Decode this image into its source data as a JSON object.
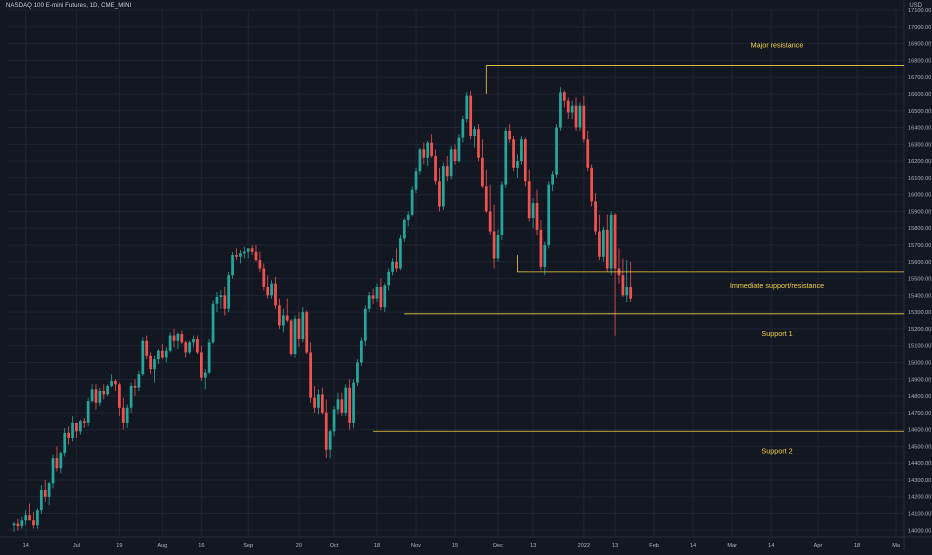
{
  "chart_data": {
    "type": "candlestick",
    "title": "NASDAQ 100 E-mini Futures, 1D, CME_MINI",
    "unit": "USD",
    "y_ticks": [
      14000,
      14100,
      14200,
      14300,
      14400,
      14500,
      14600,
      14700,
      14800,
      14900,
      15000,
      15100,
      15200,
      15300,
      15400,
      15500,
      15600,
      15700,
      15800,
      15900,
      16000,
      16100,
      16200,
      16300,
      16400,
      16500,
      16600,
      16700,
      16800,
      16900,
      17000,
      17100
    ],
    "y_tick_labels": [
      "14000.00",
      "14100.00",
      "14200.00",
      "14300.00",
      "14400.00",
      "14500.00",
      "14600.00",
      "14700.00",
      "14800.00",
      "14900.00",
      "15000.00",
      "15100.00",
      "15200.00",
      "15300.00",
      "15400.00",
      "15500.00",
      "15600.00",
      "15700.00",
      "15800.00",
      "15900.00",
      "16000.00",
      "16100.00",
      "16200.00",
      "16300.00",
      "16400.00",
      "16500.00",
      "16600.00",
      "16700.00",
      "16800.00",
      "16900.00",
      "17000.00",
      "17100.00"
    ],
    "ylim": [
      13960,
      17160
    ],
    "x_ticks": [
      {
        "label": "14",
        "index": 3
      },
      {
        "label": "Jul",
        "index": 16
      },
      {
        "label": "19",
        "index": 27
      },
      {
        "label": "Aug",
        "index": 38
      },
      {
        "label": "16",
        "index": 48
      },
      {
        "label": "Sep",
        "index": 60
      },
      {
        "label": "20",
        "index": 73
      },
      {
        "label": "Oct",
        "index": 82
      },
      {
        "label": "18",
        "index": 93
      },
      {
        "label": "Nov",
        "index": 103
      },
      {
        "label": "15",
        "index": 113
      },
      {
        "label": "Dec",
        "index": 124
      },
      {
        "label": "13",
        "index": 133
      },
      {
        "label": "2022",
        "index": 146
      },
      {
        "label": "13",
        "index": 154
      },
      {
        "label": "Feb",
        "index": 164
      },
      {
        "label": "14",
        "index": 174
      },
      {
        "label": "Mar",
        "index": 184
      },
      {
        "label": "14",
        "index": 194
      },
      {
        "label": "Apr",
        "index": 206
      },
      {
        "label": "18",
        "index": 216
      },
      {
        "label": "Ma",
        "index": 226
      }
    ],
    "index_range": [
      0,
      227
    ],
    "colors": {
      "up": "#26a69a",
      "down": "#ef5350",
      "level": "#f0d243",
      "grid": "#1f2433",
      "text": "#b2b5be"
    },
    "candles": [
      [
        14030,
        14050,
        13990,
        14040
      ],
      [
        14040,
        14070,
        14000,
        14025
      ],
      [
        14025,
        14080,
        14010,
        14060
      ],
      [
        14060,
        14120,
        14030,
        14090
      ],
      [
        14090,
        14160,
        14060,
        14060
      ],
      [
        14060,
        14110,
        14010,
        14030
      ],
      [
        14030,
        14130,
        14010,
        14120
      ],
      [
        14120,
        14270,
        14100,
        14240
      ],
      [
        14240,
        14300,
        14170,
        14200
      ],
      [
        14200,
        14290,
        14150,
        14280
      ],
      [
        14280,
        14450,
        14250,
        14430
      ],
      [
        14430,
        14500,
        14350,
        14370
      ],
      [
        14370,
        14470,
        14340,
        14460
      ],
      [
        14460,
        14610,
        14440,
        14580
      ],
      [
        14580,
        14620,
        14510,
        14550
      ],
      [
        14550,
        14680,
        14530,
        14640
      ],
      [
        14640,
        14640,
        14550,
        14590
      ],
      [
        14590,
        14660,
        14570,
        14650
      ],
      [
        14650,
        14670,
        14610,
        14640
      ],
      [
        14640,
        14790,
        14620,
        14770
      ],
      [
        14770,
        14870,
        14760,
        14840
      ],
      [
        14840,
        14870,
        14720,
        14760
      ],
      [
        14760,
        14850,
        14740,
        14830
      ],
      [
        14830,
        14870,
        14780,
        14810
      ],
      [
        14810,
        14870,
        14800,
        14860
      ],
      [
        14860,
        14930,
        14850,
        14890
      ],
      [
        14890,
        14900,
        14830,
        14870
      ],
      [
        14870,
        14880,
        14680,
        14730
      ],
      [
        14730,
        14790,
        14600,
        14640
      ],
      [
        14640,
        14750,
        14610,
        14730
      ],
      [
        14730,
        14880,
        14700,
        14860
      ],
      [
        14860,
        14900,
        14800,
        14850
      ],
      [
        14850,
        14950,
        14830,
        14930
      ],
      [
        14930,
        15150,
        14920,
        15130
      ],
      [
        15130,
        15160,
        15020,
        15040
      ],
      [
        15040,
        15060,
        14930,
        14960
      ],
      [
        14960,
        15040,
        14880,
        15020
      ],
      [
        15020,
        15080,
        14990,
        15070
      ],
      [
        15070,
        15110,
        15020,
        15030
      ],
      [
        15030,
        15090,
        15000,
        15070
      ],
      [
        15070,
        15180,
        15060,
        15160
      ],
      [
        15160,
        15200,
        15090,
        15130
      ],
      [
        15130,
        15180,
        15080,
        15170
      ],
      [
        15170,
        15190,
        15110,
        15120
      ],
      [
        15120,
        15130,
        15030,
        15060
      ],
      [
        15060,
        15130,
        15050,
        15120
      ],
      [
        15120,
        15160,
        15090,
        15140
      ],
      [
        15140,
        15160,
        15050,
        15060
      ],
      [
        15060,
        15100,
        14890,
        14910
      ],
      [
        14910,
        14960,
        14840,
        14940
      ],
      [
        14940,
        15140,
        14930,
        15120
      ],
      [
        15120,
        15370,
        15110,
        15350
      ],
      [
        15350,
        15420,
        15300,
        15390
      ],
      [
        15390,
        15430,
        15320,
        15400
      ],
      [
        15400,
        15450,
        15280,
        15320
      ],
      [
        15320,
        15540,
        15300,
        15520
      ],
      [
        15520,
        15660,
        15500,
        15640
      ],
      [
        15640,
        15680,
        15610,
        15630
      ],
      [
        15630,
        15670,
        15590,
        15650
      ],
      [
        15650,
        15690,
        15620,
        15660
      ],
      [
        15660,
        15680,
        15620,
        15680
      ],
      [
        15680,
        15700,
        15640,
        15660
      ],
      [
        15660,
        15700,
        15600,
        15610
      ],
      [
        15610,
        15660,
        15540,
        15560
      ],
      [
        15560,
        15590,
        15430,
        15450
      ],
      [
        15450,
        15520,
        15380,
        15400
      ],
      [
        15400,
        15490,
        15380,
        15470
      ],
      [
        15470,
        15510,
        15320,
        15340
      ],
      [
        15340,
        15380,
        15200,
        15220
      ],
      [
        15220,
        15320,
        15180,
        15280
      ],
      [
        15280,
        15380,
        15240,
        15250
      ],
      [
        15250,
        15260,
        15040,
        15050
      ],
      [
        15050,
        15280,
        15030,
        15260
      ],
      [
        15260,
        15300,
        15090,
        15140
      ],
      [
        15140,
        15330,
        15120,
        15300
      ],
      [
        15300,
        15310,
        15050,
        15060
      ],
      [
        15060,
        15120,
        14760,
        14790
      ],
      [
        14790,
        14860,
        14700,
        14730
      ],
      [
        14730,
        14840,
        14690,
        14810
      ],
      [
        14810,
        14850,
        14690,
        14700
      ],
      [
        14700,
        14780,
        14430,
        14480
      ],
      [
        14480,
        14600,
        14430,
        14590
      ],
      [
        14590,
        14740,
        14560,
        14720
      ],
      [
        14720,
        14820,
        14690,
        14780
      ],
      [
        14780,
        14820,
        14680,
        14700
      ],
      [
        14700,
        14870,
        14680,
        14850
      ],
      [
        14850,
        14900,
        14600,
        14640
      ],
      [
        14640,
        14900,
        14610,
        14880
      ],
      [
        14880,
        15020,
        14860,
        15000
      ],
      [
        15000,
        15150,
        14980,
        15130
      ],
      [
        15130,
        15340,
        15100,
        15320
      ],
      [
        15320,
        15420,
        15300,
        15400
      ],
      [
        15400,
        15440,
        15350,
        15380
      ],
      [
        15380,
        15470,
        15360,
        15450
      ],
      [
        15450,
        15500,
        15310,
        15330
      ],
      [
        15330,
        15470,
        15300,
        15460
      ],
      [
        15460,
        15560,
        15430,
        15540
      ],
      [
        15540,
        15620,
        15520,
        15600
      ],
      [
        15600,
        15680,
        15540,
        15560
      ],
      [
        15560,
        15760,
        15550,
        15740
      ],
      [
        15740,
        15860,
        15720,
        15850
      ],
      [
        15850,
        15900,
        15810,
        15880
      ],
      [
        15880,
        16050,
        15870,
        16030
      ],
      [
        16030,
        16160,
        16010,
        16140
      ],
      [
        16140,
        16280,
        16120,
        16270
      ],
      [
        16270,
        16310,
        16180,
        16220
      ],
      [
        16220,
        16320,
        16170,
        16310
      ],
      [
        16310,
        16360,
        16220,
        16230
      ],
      [
        16230,
        16270,
        16060,
        16080
      ],
      [
        16080,
        16160,
        15900,
        15930
      ],
      [
        15930,
        16190,
        15910,
        16170
      ],
      [
        16170,
        16230,
        16080,
        16110
      ],
      [
        16110,
        16290,
        16090,
        16270
      ],
      [
        16270,
        16300,
        16180,
        16200
      ],
      [
        16200,
        16360,
        16190,
        16340
      ],
      [
        16340,
        16470,
        16310,
        16450
      ],
      [
        16450,
        16610,
        16430,
        16590
      ],
      [
        16590,
        16620,
        16330,
        16350
      ],
      [
        16350,
        16410,
        16280,
        16390
      ],
      [
        16390,
        16420,
        16200,
        16220
      ],
      [
        16220,
        16330,
        16040,
        16050
      ],
      [
        16050,
        16150,
        15890,
        15900
      ],
      [
        15900,
        16060,
        15760,
        15780
      ],
      [
        15780,
        15940,
        15560,
        15620
      ],
      [
        15620,
        15790,
        15600,
        15760
      ],
      [
        15760,
        16080,
        15730,
        16060
      ],
      [
        16060,
        16400,
        16040,
        16380
      ],
      [
        16380,
        16420,
        16310,
        16330
      ],
      [
        16330,
        16350,
        16140,
        16160
      ],
      [
        16160,
        16240,
        16100,
        16200
      ],
      [
        16200,
        16350,
        16180,
        16330
      ],
      [
        16330,
        16340,
        16050,
        16080
      ],
      [
        16080,
        16150,
        15840,
        15860
      ],
      [
        15860,
        15980,
        15800,
        15950
      ],
      [
        15950,
        16030,
        15760,
        15790
      ],
      [
        15790,
        15850,
        15550,
        15570
      ],
      [
        15570,
        15720,
        15520,
        15700
      ],
      [
        15700,
        16080,
        15680,
        16060
      ],
      [
        16060,
        16140,
        16020,
        16120
      ],
      [
        16120,
        16420,
        16100,
        16400
      ],
      [
        16400,
        16640,
        16380,
        16610
      ],
      [
        16610,
        16620,
        16520,
        16560
      ],
      [
        16560,
        16580,
        16450,
        16490
      ],
      [
        16490,
        16560,
        16450,
        16530
      ],
      [
        16530,
        16580,
        16380,
        16400
      ],
      [
        16400,
        16550,
        16380,
        16530
      ],
      [
        16530,
        16590,
        16310,
        16330
      ],
      [
        16330,
        16380,
        16140,
        16160
      ],
      [
        16160,
        16180,
        15930,
        15960
      ],
      [
        15960,
        16010,
        15760,
        15780
      ],
      [
        15780,
        15880,
        15610,
        15630
      ],
      [
        15630,
        15810,
        15600,
        15790
      ],
      [
        15790,
        15880,
        15540,
        15560
      ],
      [
        15560,
        15900,
        15520,
        15880
      ],
      [
        15880,
        15890,
        15160,
        15560
      ],
      [
        15560,
        15680,
        15470,
        15520
      ],
      [
        15520,
        15620,
        15390,
        15400
      ],
      [
        15400,
        15610,
        15360,
        15450
      ],
      [
        15450,
        15600,
        15360,
        15380
      ]
    ],
    "levels": [
      {
        "name": "Major resistance",
        "value": 16770,
        "start_index": 121
      },
      {
        "name": "Immediate support/resistance",
        "value": 15540,
        "start_index": 129
      },
      {
        "name": "Support 1",
        "value": 15290,
        "start_index": 100
      },
      {
        "name": "Support 2",
        "value": 14590,
        "start_index": 92
      }
    ]
  }
}
